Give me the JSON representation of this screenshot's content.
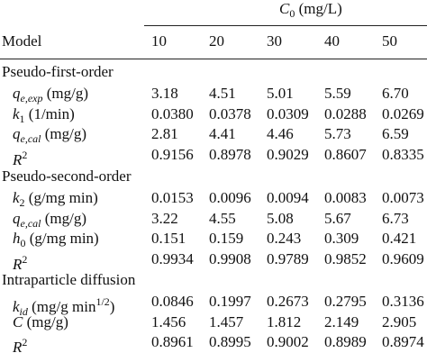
{
  "header": {
    "group": {
      "sym": "C",
      "sub": "0",
      "unit": "(mg/L)"
    },
    "row_label": "Model",
    "columns": [
      "10",
      "20",
      "30",
      "40",
      "50"
    ]
  },
  "sections": [
    {
      "title": "Pseudo-first-order",
      "rows": [
        {
          "label": {
            "sym": "q",
            "sub": "e,exp",
            "unit": "(mg/g)"
          },
          "values": [
            "3.18",
            "4.51",
            "5.01",
            "5.59",
            "6.70"
          ]
        },
        {
          "label": {
            "sym": "k",
            "sub": "1",
            "unit": "(1/min)"
          },
          "values": [
            "0.0380",
            "0.0378",
            "0.0309",
            "0.0288",
            "0.0269"
          ]
        },
        {
          "label": {
            "sym": "q",
            "sub": "e,cal",
            "unit": "(mg/g)"
          },
          "values": [
            "2.81",
            "4.41",
            "4.46",
            "5.73",
            "6.59"
          ]
        },
        {
          "label": {
            "sym": "R",
            "sup": "2"
          },
          "values": [
            "0.9156",
            "0.8978",
            "0.9029",
            "0.8607",
            "0.8335"
          ]
        }
      ]
    },
    {
      "title": "Pseudo-second-order",
      "rows": [
        {
          "label": {
            "sym": "k",
            "sub": "2",
            "unit": "(g/mg min)"
          },
          "values": [
            "0.0153",
            "0.0096",
            "0.0094",
            "0.0083",
            "0.0073"
          ]
        },
        {
          "label": {
            "sym": "q",
            "sub": "e,cal",
            "unit": "(mg/g)"
          },
          "values": [
            "3.22",
            "4.55",
            "5.08",
            "5.67",
            "6.73"
          ]
        },
        {
          "label": {
            "sym": "h",
            "sub": "0",
            "unit": "(g/mg min)"
          },
          "values": [
            "0.151",
            "0.159",
            "0.243",
            "0.309",
            "0.421"
          ]
        },
        {
          "label": {
            "sym": "R",
            "sup": "2"
          },
          "values": [
            "0.9934",
            "0.9908",
            "0.9789",
            "0.9852",
            "0.9609"
          ]
        }
      ]
    },
    {
      "title": "Intraparticle diffusion",
      "rows": [
        {
          "label": {
            "sym": "k",
            "sub": "id",
            "unit": "(mg/g min",
            "unit_sup": "1/2",
            "unit_end": ")"
          },
          "values": [
            "0.0846",
            "0.1997",
            "0.2673",
            "0.2795",
            "0.3136"
          ]
        },
        {
          "label": {
            "sym": "C",
            "unit": "(mg/g)"
          },
          "values": [
            "1.456",
            "1.457",
            "1.812",
            "2.149",
            "2.905"
          ]
        },
        {
          "label": {
            "sym": "R",
            "sup": "2"
          },
          "values": [
            "0.8961",
            "0.8995",
            "0.9002",
            "0.8989",
            "0.8974"
          ]
        }
      ]
    }
  ]
}
